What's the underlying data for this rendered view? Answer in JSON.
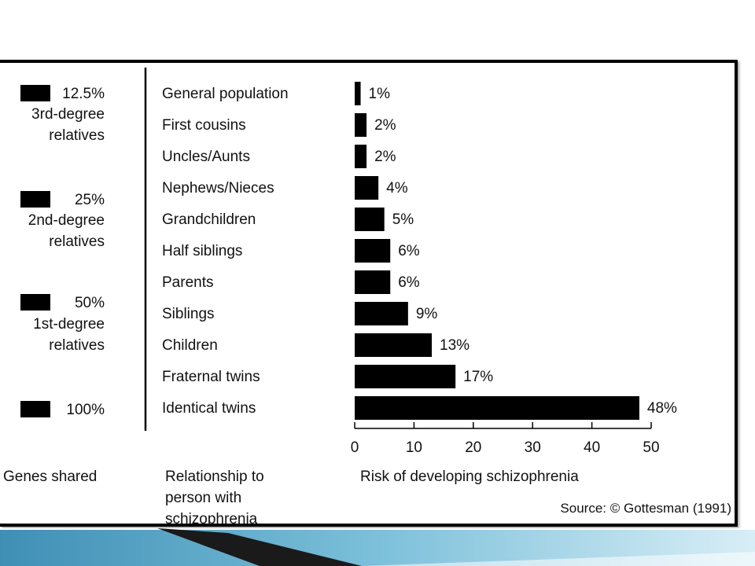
{
  "chart_data": {
    "type": "bar",
    "orientation": "horizontal",
    "categories": [
      "General population",
      "First cousins",
      "Uncles/Aunts",
      "Nephews/Nieces",
      "Grandchildren",
      "Half siblings",
      "Parents",
      "Siblings",
      "Children",
      "Fraternal twins",
      "Identical twins"
    ],
    "values": [
      1,
      2,
      2,
      4,
      5,
      6,
      6,
      9,
      13,
      17,
      48
    ],
    "value_labels": [
      "1%",
      "2%",
      "2%",
      "4%",
      "5%",
      "6%",
      "6%",
      "9%",
      "13%",
      "17%",
      "48%"
    ],
    "xlim": [
      0,
      50
    ],
    "xticks": [
      0,
      10,
      20,
      30,
      40,
      50
    ],
    "xlabel": "Risk of developing schizophrenia",
    "grid": false,
    "bar_color": "#000000",
    "genes_shared": [
      {
        "percent": "12.5%",
        "desc_lines": [
          "3rd-degree",
          "relatives"
        ]
      },
      {
        "percent": "25%",
        "desc_lines": [
          "2nd-degree",
          "relatives"
        ]
      },
      {
        "percent": "50%",
        "desc_lines": [
          "1st-degree",
          "relatives"
        ]
      },
      {
        "percent": "100%",
        "desc_lines": []
      }
    ],
    "column_headers": {
      "genes": "Genes shared",
      "relationship_lines": [
        "Relationship to",
        "person with",
        "schizophrenia"
      ]
    },
    "source": "Source: © Gottesman (1991)"
  },
  "colors": {
    "frame": "#000000",
    "bars": "#000000",
    "decor_dark": "#1a1a1a",
    "decor_teal": "#5aa9c9"
  }
}
